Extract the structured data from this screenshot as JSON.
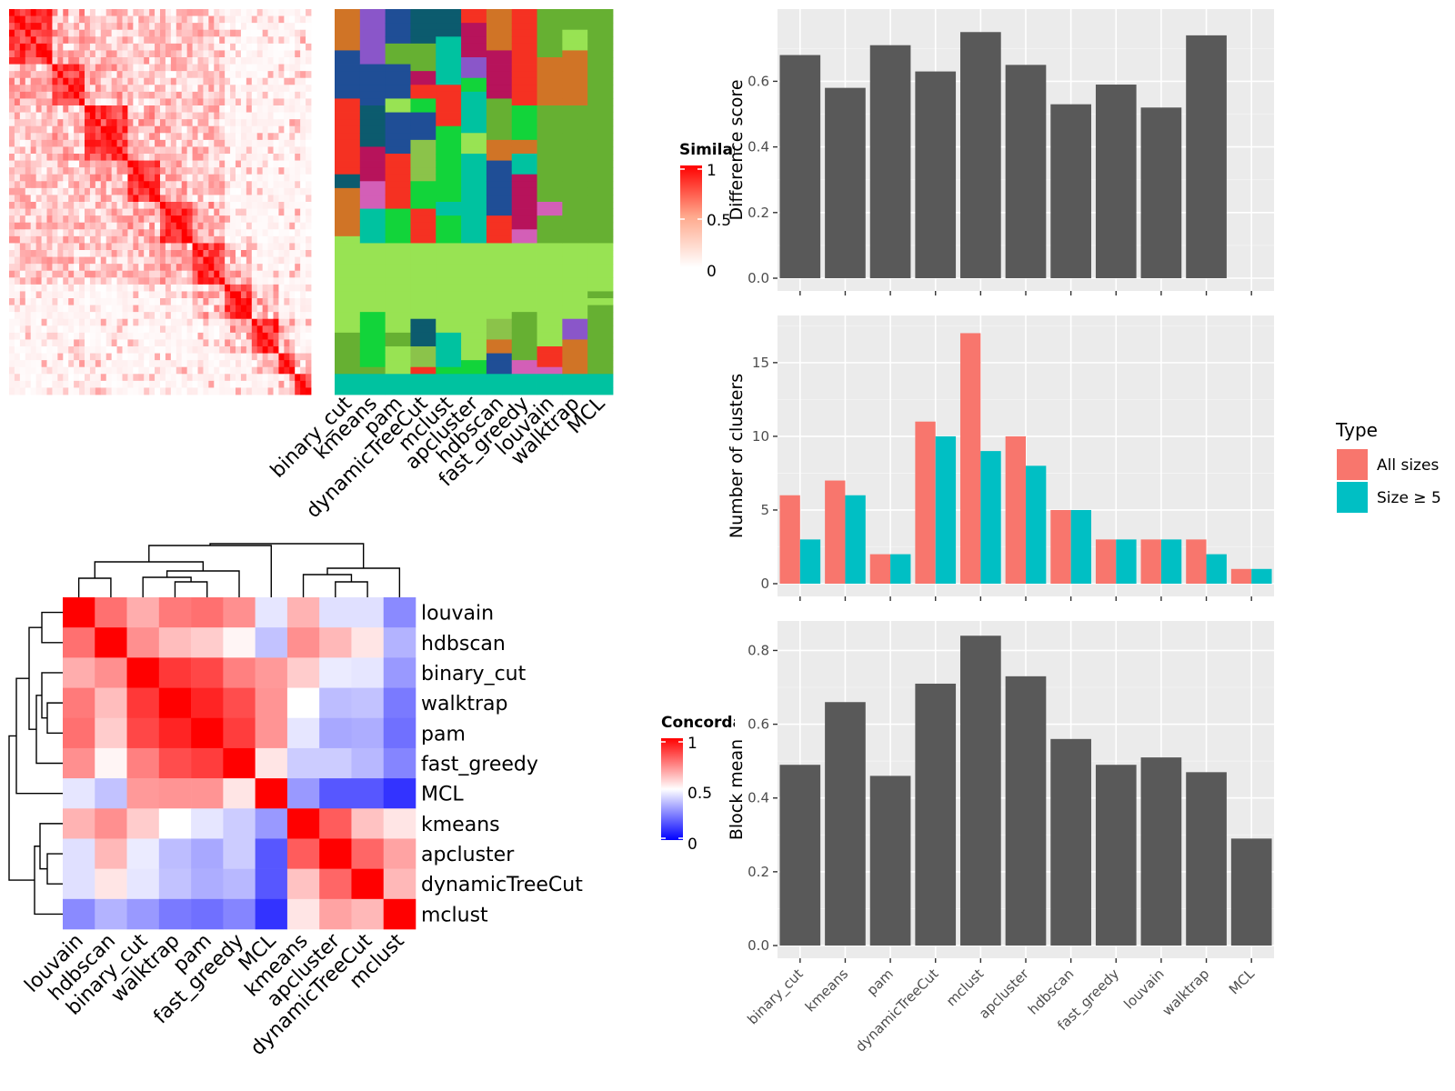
{
  "methods": [
    "binary_cut",
    "kmeans",
    "pam",
    "dynamicTreeCut",
    "mclust",
    "apcluster",
    "hdbscan",
    "fast_greedy",
    "louvain",
    "walktrap",
    "MCL"
  ],
  "colors": {
    "panel_bg": "#ebebeb",
    "bar_grey": "#595959",
    "all_sizes": "#f8766d",
    "size_ge5": "#00bfc4",
    "heat_high": "#ff0000",
    "heat_low": "#0000ff"
  },
  "similarity_heatmap": {
    "legend_title": "Similarity",
    "legend_ticks": [
      "1",
      "0.5",
      "0"
    ]
  },
  "cluster_map": {
    "column_labels": [
      "binary_cut",
      "kmeans",
      "pam",
      "dynamicTreeCut",
      "mclust",
      "apcluster",
      "hdbscan",
      "fast_greedy",
      "louvain",
      "walktrap",
      "MCL"
    ]
  },
  "concordance_heatmap": {
    "legend_title": "Concordance",
    "legend_ticks": [
      "1",
      "0.5",
      "0"
    ],
    "order": [
      "louvain",
      "hdbscan",
      "binary_cut",
      "walktrap",
      "pam",
      "fast_greedy",
      "MCL",
      "kmeans",
      "apcluster",
      "dynamicTreeCut",
      "mclust"
    ],
    "matrix": [
      [
        1.0,
        0.78,
        0.66,
        0.76,
        0.78,
        0.72,
        0.45,
        0.65,
        0.44,
        0.44,
        0.27
      ],
      [
        0.78,
        1.0,
        0.72,
        0.63,
        0.6,
        0.52,
        0.38,
        0.72,
        0.64,
        0.55,
        0.35
      ],
      [
        0.66,
        0.72,
        1.0,
        0.89,
        0.86,
        0.75,
        0.7,
        0.6,
        0.46,
        0.45,
        0.3
      ],
      [
        0.76,
        0.63,
        0.89,
        1.0,
        0.93,
        0.85,
        0.71,
        0.5,
        0.37,
        0.38,
        0.24
      ],
      [
        0.78,
        0.6,
        0.86,
        0.93,
        1.0,
        0.88,
        0.71,
        0.45,
        0.33,
        0.34,
        0.22
      ],
      [
        0.72,
        0.52,
        0.75,
        0.85,
        0.88,
        1.0,
        0.55,
        0.4,
        0.4,
        0.36,
        0.26
      ],
      [
        0.45,
        0.38,
        0.7,
        0.71,
        0.71,
        0.55,
        1.0,
        0.3,
        0.17,
        0.17,
        0.1
      ],
      [
        0.65,
        0.72,
        0.6,
        0.5,
        0.45,
        0.4,
        0.3,
        1.0,
        0.82,
        0.62,
        0.55
      ],
      [
        0.44,
        0.64,
        0.46,
        0.37,
        0.33,
        0.4,
        0.17,
        0.82,
        1.0,
        0.8,
        0.68
      ],
      [
        0.44,
        0.55,
        0.45,
        0.38,
        0.34,
        0.36,
        0.17,
        0.62,
        0.8,
        1.0,
        0.64
      ],
      [
        0.27,
        0.35,
        0.3,
        0.24,
        0.22,
        0.26,
        0.1,
        0.55,
        0.68,
        0.64,
        1.0
      ]
    ]
  },
  "chart_data": [
    {
      "type": "bar",
      "ylabel": "Difference score",
      "categories": [
        "binary_cut",
        "kmeans",
        "pam",
        "dynamicTreeCut",
        "mclust",
        "apcluster",
        "hdbscan",
        "fast_greedy",
        "louvain",
        "walktrap",
        "MCL"
      ],
      "values": [
        0.68,
        0.58,
        0.71,
        0.63,
        0.75,
        0.65,
        0.53,
        0.59,
        0.52,
        0.74,
        0
      ],
      "ylim": [
        0,
        0.82
      ],
      "yticks": [
        "0.0",
        "0.2",
        "0.4",
        "0.6"
      ],
      "show_x_labels": false
    },
    {
      "type": "bar",
      "ylabel": "Number of clusters",
      "categories": [
        "binary_cut",
        "kmeans",
        "pam",
        "dynamicTreeCut",
        "mclust",
        "apcluster",
        "hdbscan",
        "fast_greedy",
        "louvain",
        "walktrap",
        "MCL"
      ],
      "series": [
        {
          "name": "All sizes",
          "values": [
            6,
            7,
            2,
            11,
            17,
            10,
            5,
            3,
            3,
            3,
            1
          ]
        },
        {
          "name": "Size ≥ 5",
          "values": [
            3,
            6,
            2,
            10,
            9,
            8,
            5,
            3,
            3,
            2,
            1
          ]
        }
      ],
      "legend_title": "Type",
      "ylim": [
        0,
        18.2
      ],
      "yticks": [
        "0",
        "5",
        "10",
        "15"
      ],
      "show_x_labels": false
    },
    {
      "type": "bar",
      "ylabel": "Block mean",
      "categories": [
        "binary_cut",
        "kmeans",
        "pam",
        "dynamicTreeCut",
        "mclust",
        "apcluster",
        "hdbscan",
        "fast_greedy",
        "louvain",
        "walktrap",
        "MCL"
      ],
      "values": [
        0.49,
        0.66,
        0.46,
        0.71,
        0.84,
        0.73,
        0.56,
        0.49,
        0.51,
        0.47,
        0.29
      ],
      "ylim": [
        0,
        0.88
      ],
      "yticks": [
        "0.0",
        "0.2",
        "0.4",
        "0.6",
        "0.8"
      ],
      "show_x_labels": true
    }
  ]
}
